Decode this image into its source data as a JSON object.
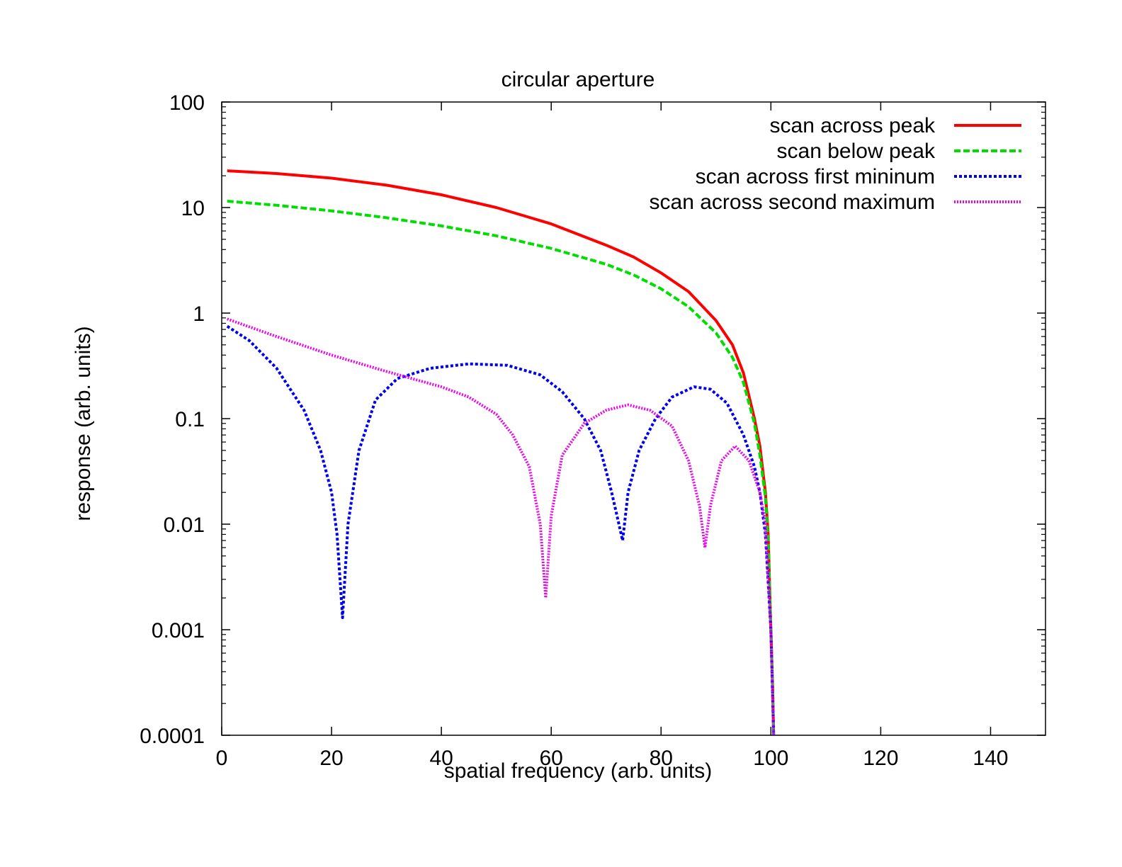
{
  "chart_data": {
    "type": "line",
    "title": "circular aperture",
    "xlabel": "spatial frequency (arb. units)",
    "ylabel": "response (arb. units)",
    "xlim": [
      0,
      150
    ],
    "ylim": [
      0.0001,
      100
    ],
    "yscale": "log",
    "grid": false,
    "legend_position": "top-right",
    "x_ticks": [
      {
        "value": 0,
        "label": "0"
      },
      {
        "value": 20,
        "label": "20"
      },
      {
        "value": 40,
        "label": "40"
      },
      {
        "value": 60,
        "label": "60"
      },
      {
        "value": 80,
        "label": "80"
      },
      {
        "value": 100,
        "label": "100"
      },
      {
        "value": 120,
        "label": "120"
      },
      {
        "value": 140,
        "label": "140"
      }
    ],
    "y_ticks": [
      {
        "value": 100,
        "label": "100"
      },
      {
        "value": 10,
        "label": "10"
      },
      {
        "value": 1,
        "label": "1"
      },
      {
        "value": 0.1,
        "label": "0.1"
      },
      {
        "value": 0.01,
        "label": "0.01"
      },
      {
        "value": 0.001,
        "label": "0.001"
      },
      {
        "value": 0.0001,
        "label": "0.0001"
      }
    ],
    "series": [
      {
        "name": "scan across peak",
        "color": "#ff0000",
        "dash": "solid",
        "points": [
          [
            1,
            22.3
          ],
          [
            10,
            21.0
          ],
          [
            20,
            19.0
          ],
          [
            30,
            16.3
          ],
          [
            40,
            13.2
          ],
          [
            50,
            10.0
          ],
          [
            60,
            7.0
          ],
          [
            70,
            4.4
          ],
          [
            75,
            3.4
          ],
          [
            80,
            2.4
          ],
          [
            85,
            1.6
          ],
          [
            90,
            0.85
          ],
          [
            93,
            0.5
          ],
          [
            95,
            0.27
          ],
          [
            97,
            0.1
          ],
          [
            98,
            0.055
          ],
          [
            99,
            0.02
          ],
          [
            99.5,
            0.008
          ],
          [
            100,
            0.001
          ],
          [
            100.3,
            0.0003
          ],
          [
            100.5,
            0.0001
          ]
        ]
      },
      {
        "name": "scan below peak",
        "color": "#00dd00",
        "dash": "dashed",
        "points": [
          [
            1,
            11.5
          ],
          [
            10,
            10.5
          ],
          [
            20,
            9.3
          ],
          [
            30,
            8.0
          ],
          [
            40,
            6.7
          ],
          [
            50,
            5.4
          ],
          [
            60,
            4.1
          ],
          [
            70,
            2.9
          ],
          [
            75,
            2.3
          ],
          [
            80,
            1.7
          ],
          [
            85,
            1.15
          ],
          [
            90,
            0.65
          ],
          [
            93,
            0.38
          ],
          [
            95,
            0.22
          ],
          [
            97,
            0.09
          ],
          [
            98,
            0.045
          ],
          [
            99,
            0.018
          ],
          [
            99.5,
            0.007
          ],
          [
            100,
            0.001
          ],
          [
            100.3,
            0.0003
          ],
          [
            100.5,
            0.0001
          ]
        ]
      },
      {
        "name": "scan across first mininum",
        "color": "#0000ee",
        "dash": "dotted",
        "points": [
          [
            1,
            0.75
          ],
          [
            5,
            0.55
          ],
          [
            10,
            0.3
          ],
          [
            15,
            0.12
          ],
          [
            18,
            0.05
          ],
          [
            20,
            0.02
          ],
          [
            21,
            0.008
          ],
          [
            22,
            0.0013
          ],
          [
            23,
            0.01
          ],
          [
            25,
            0.05
          ],
          [
            28,
            0.15
          ],
          [
            32,
            0.24
          ],
          [
            38,
            0.3
          ],
          [
            45,
            0.33
          ],
          [
            52,
            0.32
          ],
          [
            58,
            0.26
          ],
          [
            62,
            0.18
          ],
          [
            66,
            0.1
          ],
          [
            69,
            0.05
          ],
          [
            71,
            0.02
          ],
          [
            73,
            0.007
          ],
          [
            74,
            0.02
          ],
          [
            76,
            0.05
          ],
          [
            79,
            0.1
          ],
          [
            82,
            0.16
          ],
          [
            86,
            0.2
          ],
          [
            89,
            0.19
          ],
          [
            92,
            0.14
          ],
          [
            95,
            0.07
          ],
          [
            97,
            0.035
          ],
          [
            98,
            0.02
          ],
          [
            99,
            0.008
          ],
          [
            100,
            0.001
          ],
          [
            100.5,
            0.0001
          ]
        ]
      },
      {
        "name": "scan across second maximum",
        "color": "#ee00ee",
        "dash": "finedot",
        "points": [
          [
            1,
            0.88
          ],
          [
            10,
            0.6
          ],
          [
            20,
            0.4
          ],
          [
            30,
            0.28
          ],
          [
            40,
            0.2
          ],
          [
            45,
            0.16
          ],
          [
            50,
            0.11
          ],
          [
            53,
            0.07
          ],
          [
            56,
            0.035
          ],
          [
            58,
            0.01
          ],
          [
            59,
            0.002
          ],
          [
            60,
            0.012
          ],
          [
            62,
            0.045
          ],
          [
            66,
            0.09
          ],
          [
            70,
            0.12
          ],
          [
            74,
            0.135
          ],
          [
            78,
            0.12
          ],
          [
            82,
            0.085
          ],
          [
            85,
            0.04
          ],
          [
            87,
            0.015
          ],
          [
            88,
            0.006
          ],
          [
            89,
            0.015
          ],
          [
            91,
            0.04
          ],
          [
            93.5,
            0.055
          ],
          [
            96,
            0.04
          ],
          [
            98,
            0.02
          ],
          [
            99,
            0.01
          ],
          [
            100,
            0.001
          ],
          [
            100.5,
            0.0001
          ]
        ]
      }
    ]
  }
}
